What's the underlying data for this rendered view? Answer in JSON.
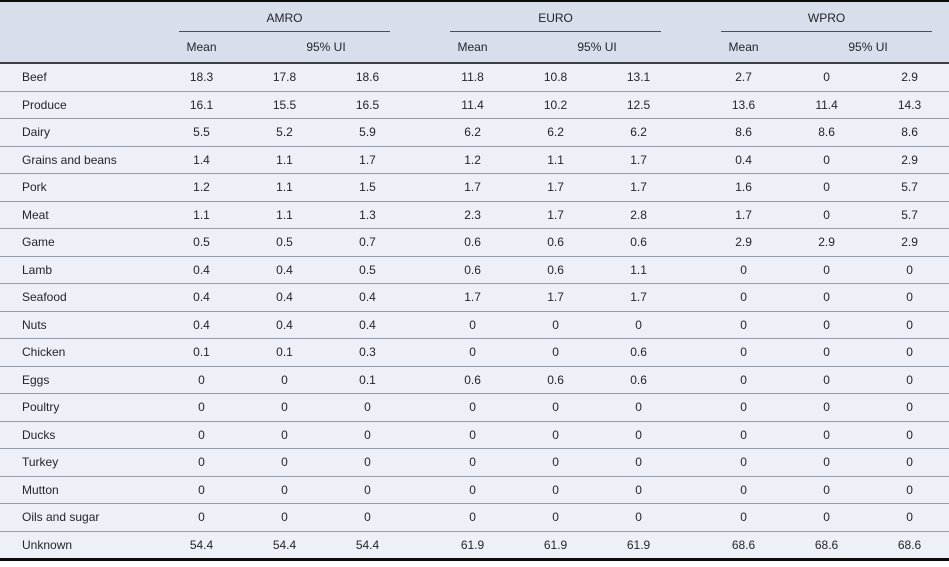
{
  "table": {
    "groups": [
      {
        "name": "AMRO",
        "mean_label": "Mean",
        "ui_label": "95% UI"
      },
      {
        "name": "EURO",
        "mean_label": "Mean",
        "ui_label": "95% UI"
      },
      {
        "name": "WPRO",
        "mean_label": "Mean",
        "ui_label": "95% UI"
      }
    ],
    "rows": [
      {
        "label": "Beef",
        "values": [
          "18.3",
          "17.8",
          "18.6",
          "11.8",
          "10.8",
          "13.1",
          "2.7",
          "0",
          "2.9"
        ]
      },
      {
        "label": "Produce",
        "values": [
          "16.1",
          "15.5",
          "16.5",
          "11.4",
          "10.2",
          "12.5",
          "13.6",
          "11.4",
          "14.3"
        ]
      },
      {
        "label": "Dairy",
        "values": [
          "5.5",
          "5.2",
          "5.9",
          "6.2",
          "6.2",
          "6.2",
          "8.6",
          "8.6",
          "8.6"
        ]
      },
      {
        "label": "Grains and beans",
        "values": [
          "1.4",
          "1.1",
          "1.7",
          "1.2",
          "1.1",
          "1.7",
          "0.4",
          "0",
          "2.9"
        ]
      },
      {
        "label": "Pork",
        "values": [
          "1.2",
          "1.1",
          "1.5",
          "1.7",
          "1.7",
          "1.7",
          "1.6",
          "0",
          "5.7"
        ]
      },
      {
        "label": "Meat",
        "values": [
          "1.1",
          "1.1",
          "1.3",
          "2.3",
          "1.7",
          "2.8",
          "1.7",
          "0",
          "5.7"
        ]
      },
      {
        "label": "Game",
        "values": [
          "0.5",
          "0.5",
          "0.7",
          "0.6",
          "0.6",
          "0.6",
          "2.9",
          "2.9",
          "2.9"
        ]
      },
      {
        "label": "Lamb",
        "values": [
          "0.4",
          "0.4",
          "0.5",
          "0.6",
          "0.6",
          "1.1",
          "0",
          "0",
          "0"
        ]
      },
      {
        "label": "Seafood",
        "values": [
          "0.4",
          "0.4",
          "0.4",
          "1.7",
          "1.7",
          "1.7",
          "0",
          "0",
          "0"
        ]
      },
      {
        "label": "Nuts",
        "values": [
          "0.4",
          "0.4",
          "0.4",
          "0",
          "0",
          "0",
          "0",
          "0",
          "0"
        ]
      },
      {
        "label": "Chicken",
        "values": [
          "0.1",
          "0.1",
          "0.3",
          "0",
          "0",
          "0.6",
          "0",
          "0",
          "0"
        ]
      },
      {
        "label": "Eggs",
        "values": [
          "0",
          "0",
          "0.1",
          "0.6",
          "0.6",
          "0.6",
          "0",
          "0",
          "0"
        ]
      },
      {
        "label": "Poultry",
        "values": [
          "0",
          "0",
          "0",
          "0",
          "0",
          "0",
          "0",
          "0",
          "0"
        ]
      },
      {
        "label": "Ducks",
        "values": [
          "0",
          "0",
          "0",
          "0",
          "0",
          "0",
          "0",
          "0",
          "0"
        ]
      },
      {
        "label": "Turkey",
        "values": [
          "0",
          "0",
          "0",
          "0",
          "0",
          "0",
          "0",
          "0",
          "0"
        ]
      },
      {
        "label": "Mutton",
        "values": [
          "0",
          "0",
          "0",
          "0",
          "0",
          "0",
          "0",
          "0",
          "0"
        ]
      },
      {
        "label": "Oils and sugar",
        "values": [
          "0",
          "0",
          "0",
          "0",
          "0",
          "0",
          "0",
          "0",
          "0"
        ]
      },
      {
        "label": "Unknown",
        "values": [
          "54.4",
          "54.4",
          "54.4",
          "61.9",
          "61.9",
          "61.9",
          "68.6",
          "68.6",
          "68.6"
        ]
      }
    ],
    "colors": {
      "header_bg": "#d8deec",
      "row_bg": "#edf0f7",
      "row_separator": "#969da7",
      "header_rule": "#3d4147",
      "group_underline": "#4b5058",
      "outer_border": "#0b0b0b",
      "text": "#22252a"
    }
  }
}
